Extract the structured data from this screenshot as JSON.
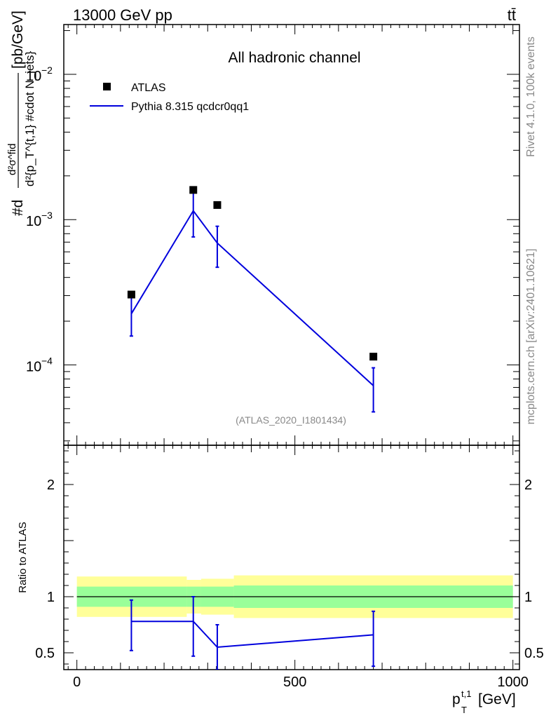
{
  "header": {
    "left": "13000 GeV pp",
    "right": "tt̄"
  },
  "side_labels": {
    "rivet": "Rivet 4.1.0,  100k events",
    "mcplots": "mcplots.cern.ch [arXiv:2401.10621]"
  },
  "chart_data": [
    {
      "type": "line",
      "panel": "main",
      "title": "All hadronic channel",
      "watermark": "(ATLAS_2020_I1801434)",
      "ylabel_parts": {
        "num": "d²σ^fid",
        "den": "d²{p_T^{t,1} #cdot N_jets}",
        "unit": "[pb/GeV]"
      },
      "ylabel": "#d d²σ^fid / d²{p_T^{t,1} #cdot N_jets} [pb/GeV]",
      "yscale": "log",
      "ylim": [
        2.8e-05,
        0.022
      ],
      "xlim": [
        -30,
        1015
      ],
      "ytick_labels": [
        {
          "value": 0.01,
          "mant": "10",
          "exp": "−2"
        },
        {
          "value": 0.001,
          "mant": "10",
          "exp": "−3"
        },
        {
          "value": 0.0001,
          "mant": "10",
          "exp": "−4"
        }
      ],
      "legend": [
        {
          "label": "ATLAS",
          "marker": "square",
          "color": "#000000"
        },
        {
          "label": "Pythia 8.315 qcdcr0qq1",
          "marker": "line",
          "color": "#0000dd"
        }
      ],
      "series": [
        {
          "name": "ATLAS",
          "color": "#000000",
          "points": [
            {
              "x": 125,
              "y": 0.000305
            },
            {
              "x": 267,
              "y": 0.0016
            },
            {
              "x": 322,
              "y": 0.00126
            },
            {
              "x": 680,
              "y": 0.000114
            }
          ]
        },
        {
          "name": "Pythia 8.315 qcdcr0qq1",
          "color": "#0000dd",
          "points": [
            {
              "x": 125,
              "y": 0.000225,
              "ylo": 0.000158,
              "yhi": 0.000295
            },
            {
              "x": 267,
              "y": 0.00115,
              "ylo": 0.00076,
              "yhi": 0.00155
            },
            {
              "x": 322,
              "y": 0.00069,
              "ylo": 0.00047,
              "yhi": 0.0009
            },
            {
              "x": 680,
              "y": 7.2e-05,
              "ylo": 4.75e-05,
              "yhi": 9.55e-05
            }
          ]
        }
      ]
    },
    {
      "type": "line",
      "panel": "ratio",
      "ylabel": "Ratio to ATLAS",
      "xlabel": "p_T^{t,1} [GeV]",
      "xlabel_parts": {
        "base": "p",
        "sup": "t,1",
        "sub": "T",
        "unit": "[GeV]"
      },
      "xlim": [
        -30,
        1015
      ],
      "ylim": [
        0.35,
        2.35
      ],
      "xticks": [
        0,
        500,
        1000
      ],
      "yticks": [
        0.5,
        1,
        2
      ],
      "reference": 1,
      "bands": [
        {
          "x0": 0,
          "x1": 252,
          "in_lo": 0.91,
          "in_hi": 1.09,
          "out_lo": 0.82,
          "out_hi": 1.18
        },
        {
          "x0": 252,
          "x1": 285,
          "in_lo": 0.91,
          "in_hi": 1.09,
          "out_lo": 0.85,
          "out_hi": 1.15
        },
        {
          "x0": 285,
          "x1": 360,
          "in_lo": 0.91,
          "in_hi": 1.09,
          "out_lo": 0.84,
          "out_hi": 1.16
        },
        {
          "x0": 360,
          "x1": 1000,
          "in_lo": 0.9,
          "in_hi": 1.1,
          "out_lo": 0.81,
          "out_hi": 1.19
        }
      ],
      "series": [
        {
          "name": "Pythia 8.315 qcdcr0qq1",
          "color": "#0000dd",
          "points": [
            {
              "x": 125,
              "y": 0.78,
              "ylo": 0.52,
              "yhi": 0.97
            },
            {
              "x": 267,
              "y": 0.78,
              "ylo": 0.47,
              "yhi": 1.0
            },
            {
              "x": 322,
              "y": 0.55,
              "ylo": 0.35,
              "yhi": 0.75
            },
            {
              "x": 680,
              "y": 0.66,
              "ylo": 0.38,
              "yhi": 0.87
            }
          ]
        }
      ]
    }
  ]
}
